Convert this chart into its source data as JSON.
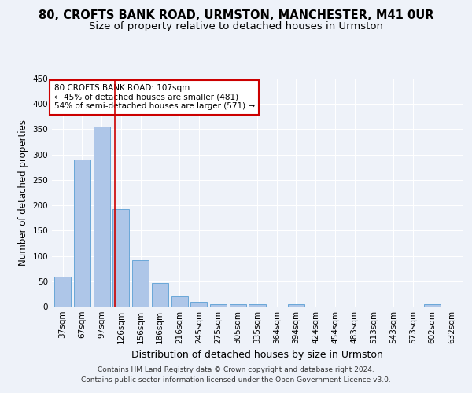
{
  "title": "80, CROFTS BANK ROAD, URMSTON, MANCHESTER, M41 0UR",
  "subtitle": "Size of property relative to detached houses in Urmston",
  "xlabel": "Distribution of detached houses by size in Urmston",
  "ylabel": "Number of detached properties",
  "categories": [
    "37sqm",
    "67sqm",
    "97sqm",
    "126sqm",
    "156sqm",
    "186sqm",
    "216sqm",
    "245sqm",
    "275sqm",
    "305sqm",
    "335sqm",
    "364sqm",
    "394sqm",
    "424sqm",
    "454sqm",
    "483sqm",
    "513sqm",
    "543sqm",
    "573sqm",
    "602sqm",
    "632sqm"
  ],
  "values": [
    59,
    290,
    355,
    193,
    91,
    47,
    20,
    9,
    5,
    5,
    5,
    0,
    5,
    0,
    0,
    0,
    0,
    0,
    0,
    5,
    0
  ],
  "bar_color": "#aec6e8",
  "bar_edge_color": "#5a9fd4",
  "vline_x": 2.67,
  "vline_color": "#cc0000",
  "annotation_text": "80 CROFTS BANK ROAD: 107sqm\n← 45% of detached houses are smaller (481)\n54% of semi-detached houses are larger (571) →",
  "annotation_box_facecolor": "#ffffff",
  "annotation_box_edgecolor": "#cc0000",
  "ylim": [
    0,
    450
  ],
  "yticks": [
    0,
    50,
    100,
    150,
    200,
    250,
    300,
    350,
    400,
    450
  ],
  "footer": "Contains HM Land Registry data © Crown copyright and database right 2024.\nContains public sector information licensed under the Open Government Licence v3.0.",
  "title_fontsize": 10.5,
  "subtitle_fontsize": 9.5,
  "xlabel_fontsize": 9,
  "ylabel_fontsize": 8.5,
  "tick_fontsize": 7.5,
  "annotation_fontsize": 7.5,
  "footer_fontsize": 6.5,
  "background_color": "#eef2f9",
  "grid_color": "#ffffff"
}
